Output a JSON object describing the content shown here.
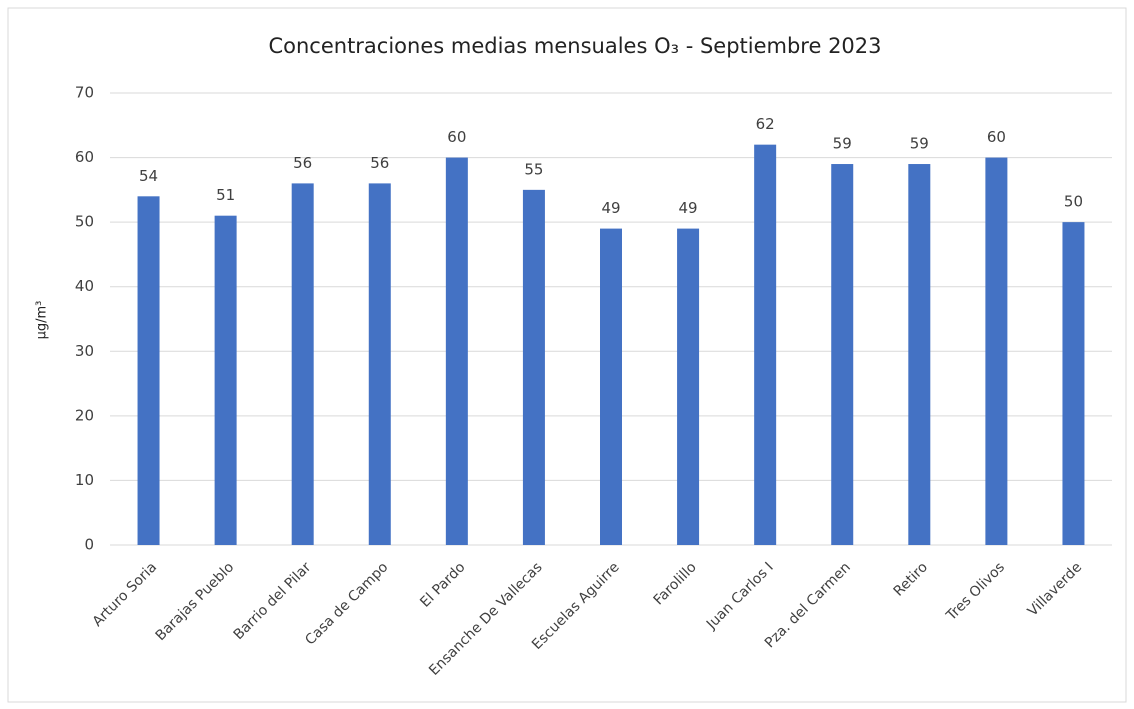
{
  "chart_data": {
    "type": "bar",
    "title": "Concentraciones medias mensuales O₃ - Septiembre 2023",
    "y_label": "µg/m³",
    "categories": [
      "Arturo Soria",
      "Barajas Pueblo",
      "Barrio del Pilar",
      "Casa de Campo",
      "El Pardo",
      "Ensanche De Vallecas",
      "Escuelas Aguirre",
      "Farolillo",
      "Juan Carlos I",
      "Pza. del Carmen",
      "Retiro",
      "Tres Olivos",
      "Villaverde"
    ],
    "values": [
      54,
      51,
      56,
      56,
      60,
      55,
      49,
      49,
      62,
      59,
      59,
      60,
      50
    ],
    "color": "#4472c4",
    "ylim": [
      0,
      70
    ],
    "yticks": [
      0,
      10,
      20,
      30,
      40,
      50,
      60,
      70
    ],
    "grid": true
  }
}
